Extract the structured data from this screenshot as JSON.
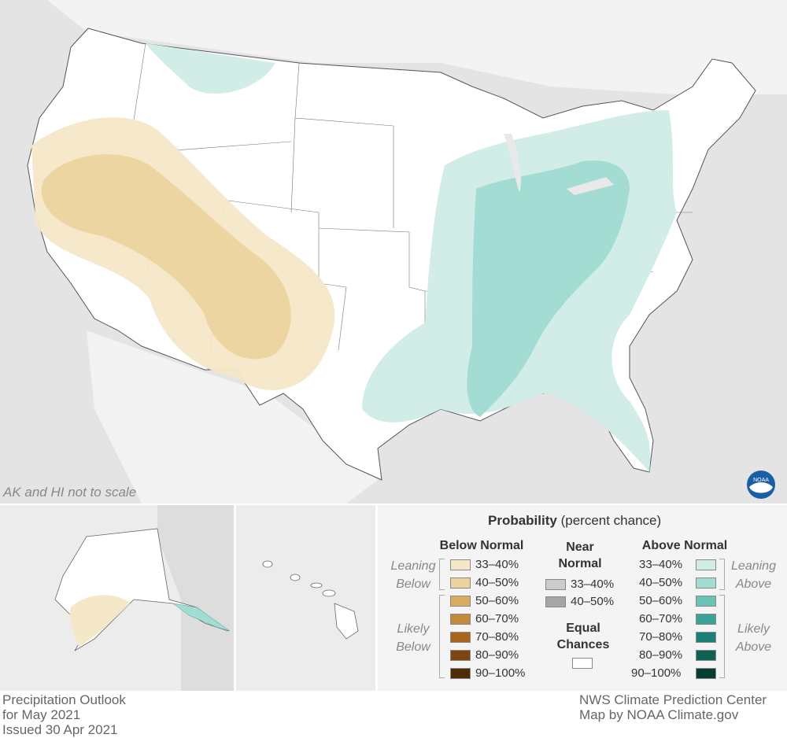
{
  "map": {
    "scale_note": "AK and HI not to scale",
    "logo_text": "NOAA"
  },
  "legend": {
    "title_bold": "Probability",
    "title_rest": " (percent chance)",
    "below_header": "Below Normal",
    "near_header": "Near Normal",
    "above_header": "Above Normal",
    "leaning_below": "Leaning Below",
    "likely_below": "Likely Below",
    "leaning_above": "Leaning Above",
    "likely_above": "Likely Above",
    "equal_chances": "Equal Chances",
    "below": [
      {
        "label": "33–40%",
        "color": "#f5e8c8"
      },
      {
        "label": "40–50%",
        "color": "#ecd49f"
      },
      {
        "label": "50–60%",
        "color": "#d8ad5f"
      },
      {
        "label": "60–70%",
        "color": "#c4893a"
      },
      {
        "label": "70–80%",
        "color": "#a8651e"
      },
      {
        "label": "80–90%",
        "color": "#7d4610"
      },
      {
        "label": "90–100%",
        "color": "#4e2a07"
      }
    ],
    "near": [
      {
        "label": "33–40%",
        "color": "#cccccc"
      },
      {
        "label": "40–50%",
        "color": "#a6a6a6"
      }
    ],
    "above": [
      {
        "label": "33–40%",
        "color": "#d2ede8"
      },
      {
        "label": "40–50%",
        "color": "#a3dcd3"
      },
      {
        "label": "50–60%",
        "color": "#6cc2b6"
      },
      {
        "label": "60–70%",
        "color": "#3aa397"
      },
      {
        "label": "70–80%",
        "color": "#1b8075"
      },
      {
        "label": "80–90%",
        "color": "#0e6154"
      },
      {
        "label": "90–100%",
        "color": "#053d33"
      }
    ]
  },
  "footer": {
    "left_line1": "Precipitation Outlook",
    "left_line2": "for May 2021",
    "left_line3": "Issued 30 Apr 2021",
    "right_line1": "NWS Climate Prediction Center",
    "right_line2": "Map by NOAA Climate.gov"
  }
}
